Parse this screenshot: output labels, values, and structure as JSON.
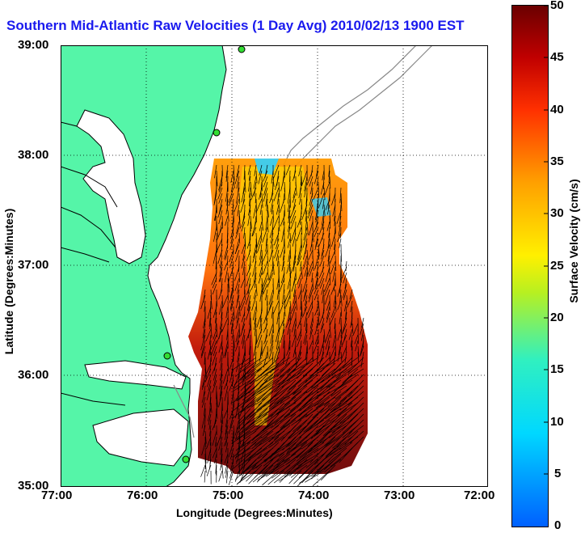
{
  "title": "Southern Mid-Atlantic Raw Velocities (1 Day Avg) 2010/02/13 1900 EST",
  "x_axis": {
    "label": "Longitude (Degrees:Minutes)",
    "ticks": [
      "77:00",
      "76:00",
      "75:00",
      "74:00",
      "73:00",
      "72:00"
    ]
  },
  "y_axis": {
    "label": "Latitude (Degrees:Minutes)",
    "ticks": [
      "39:00",
      "38:00",
      "37:00",
      "36:00",
      "35:00"
    ]
  },
  "colorbar": {
    "label": "Surface Velocity (cm/s)",
    "ticks": [
      "50",
      "45",
      "40",
      "35",
      "30",
      "25",
      "20",
      "15",
      "10",
      "5",
      "0"
    ],
    "range": [
      0,
      50
    ]
  },
  "map": {
    "lon_range": [
      -77,
      -72
    ],
    "lat_range": [
      35,
      39
    ],
    "land_color": "#55f5a8",
    "coast_color": "#000000",
    "isobath_color": "#888888",
    "grid": "dotted",
    "stations": [
      "station-1",
      "station-2",
      "station-3",
      "station-4"
    ]
  }
}
